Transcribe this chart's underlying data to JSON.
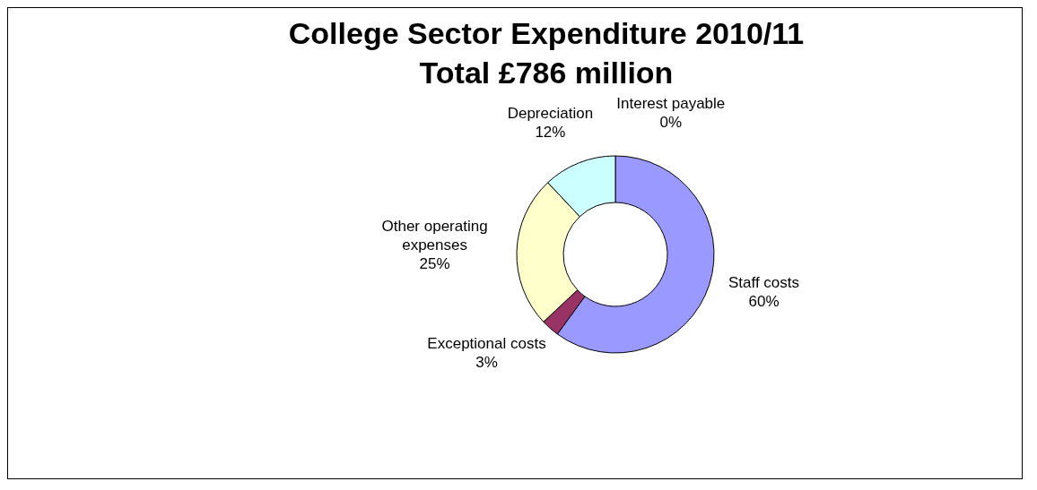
{
  "chart_data": {
    "type": "donut",
    "title": "College Sector Expenditure 2010/11\nTotal £786 million",
    "categories": [
      "Staff costs",
      "Exceptional  costs",
      "Other operating expenses",
      "Depreciation",
      "Interest payable"
    ],
    "values": [
      60,
      3,
      25,
      12,
      0
    ],
    "value_labels": [
      "60%",
      "3%",
      "25%",
      "12%",
      "0%"
    ],
    "colors": [
      "#9999ff",
      "#993366",
      "#ffffcc",
      "#ccffff",
      "#660066"
    ],
    "legend": false
  }
}
